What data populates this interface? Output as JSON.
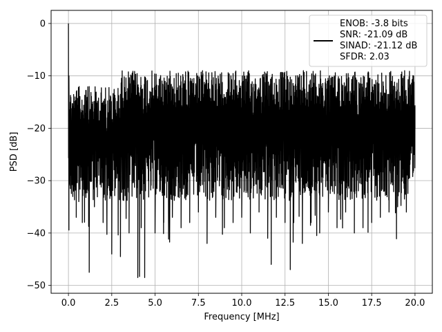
{
  "chart_data": {
    "type": "line",
    "title": "",
    "xlabel": "Frequency [MHz]",
    "ylabel": "PSD [dB]",
    "xlim": [
      -1.0,
      21.0
    ],
    "ylim": [
      -51.5,
      2.5
    ],
    "xticks": [
      0.0,
      2.5,
      5.0,
      7.5,
      10.0,
      12.5,
      15.0,
      17.5,
      20.0
    ],
    "xtick_labels": [
      "0.0",
      "2.5",
      "5.0",
      "7.5",
      "10.0",
      "12.5",
      "15.0",
      "17.5",
      "20.0"
    ],
    "yticks": [
      0,
      -10,
      -20,
      -30,
      -40,
      -50
    ],
    "ytick_labels": [
      "0",
      "−10",
      "−20",
      "−30",
      "−40",
      "−50"
    ],
    "grid": true,
    "legend_position": "top-right",
    "legend_lines": [
      "ENOB: -3.8 bits",
      "SNR: -21.09 dB",
      "SINAD: -21.12 dB",
      "SFDR: 2.03"
    ],
    "series": [
      {
        "color": "#000000",
        "description": "dense noise floor spanning roughly -35 to -8 dB with a peak at 0 dB near 0 MHz and deep dips down to about -48 dB",
        "x": [
          0.0,
          0.03,
          0.06,
          0.1,
          0.15,
          0.2,
          0.3,
          0.45,
          0.6,
          0.8,
          1.0,
          1.2,
          1.5,
          2.0,
          2.5,
          3.0,
          3.5,
          4.0,
          4.1,
          4.2,
          4.4,
          5.0,
          5.5,
          6.0,
          6.5,
          7.0,
          7.5,
          8.0,
          8.5,
          9.0,
          9.5,
          10.0,
          10.5,
          11.0,
          11.5,
          11.7,
          12.0,
          12.5,
          12.8,
          13.0,
          13.5,
          14.0,
          14.5,
          15.0,
          15.5,
          16.0,
          16.5,
          17.0,
          17.5,
          18.0,
          18.5,
          19.0,
          19.5,
          20.0
        ],
        "y": [
          0.0,
          -10.0,
          -16.5,
          -22.0,
          -25.0,
          -27.0,
          -32.0,
          -37.0,
          -34.0,
          -38.0,
          -32.0,
          -47.5,
          -35.0,
          -38.0,
          -44.0,
          -44.5,
          -40.0,
          -48.5,
          -48.3,
          -39.0,
          -48.5,
          -40.0,
          -38.0,
          -37.0,
          -39.0,
          -38.0,
          -36.0,
          -42.0,
          -37.0,
          -39.0,
          -38.0,
          -37.0,
          -40.0,
          -36.0,
          -41.0,
          -46.0,
          -37.0,
          -38.0,
          -47.0,
          -38.0,
          -42.0,
          -38.0,
          -40.0,
          -36.0,
          -39.0,
          -36.0,
          -40.0,
          -39.0,
          -38.0,
          -37.0,
          -36.0,
          -35.0,
          -36.0,
          -20.0
        ]
      }
    ]
  }
}
